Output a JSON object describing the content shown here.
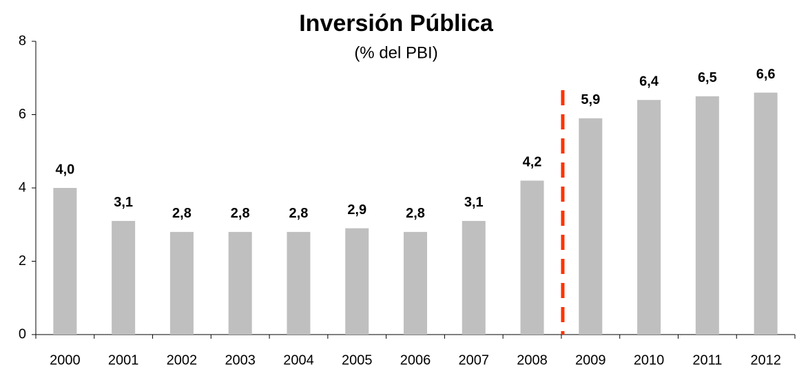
{
  "chart_data": {
    "type": "bar",
    "title": "Inversión Pública",
    "subtitle": "(% del PBI)",
    "categories": [
      "2000",
      "2001",
      "2002",
      "2003",
      "2004",
      "2005",
      "2006",
      "2007",
      "2008",
      "2009",
      "2010",
      "2011",
      "2012"
    ],
    "values": [
      4.0,
      3.1,
      2.8,
      2.8,
      2.8,
      2.9,
      2.8,
      3.1,
      4.2,
      5.9,
      6.4,
      6.5,
      6.6
    ],
    "value_labels": [
      "4,0",
      "3,1",
      "2,8",
      "2,8",
      "2,8",
      "2,9",
      "2,8",
      "3,1",
      "4,2",
      "5,9",
      "6,4",
      "6,5",
      "6,6"
    ],
    "color": "#bfbfbf",
    "label_color": "#a6a6a6",
    "ylim": [
      0,
      8
    ],
    "yticks": [
      0,
      2,
      4,
      6,
      8
    ],
    "grid": false
  }
}
